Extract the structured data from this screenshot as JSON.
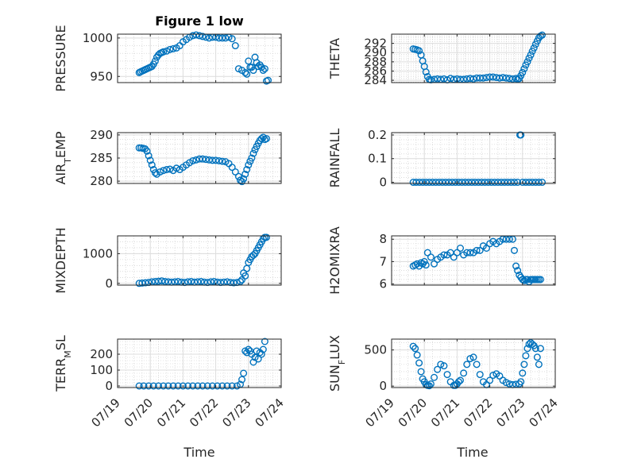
{
  "figure": {
    "title": "Figure 1 low",
    "xlabel": "Time",
    "x_ticks": [
      "07/19",
      "07/20",
      "07/21",
      "07/22",
      "07/23",
      "07/24"
    ],
    "marker_color": "#0072BD"
  },
  "chart_data": [
    {
      "type": "scatter",
      "ylabel": "PRESSURE",
      "ylabel_main": "PRESSURE",
      "ylabel_sub": "",
      "ylabel_rest": "",
      "ylim": [
        942,
        1005
      ],
      "yticks": [
        950,
        1000
      ],
      "x": [
        0.66,
        0.7,
        0.75,
        0.8,
        0.85,
        0.9,
        0.95,
        1.0,
        1.05,
        1.1,
        1.15,
        1.2,
        1.25,
        1.3,
        1.35,
        1.4,
        1.5,
        1.6,
        1.7,
        1.8,
        1.9,
        2.0,
        2.1,
        2.2,
        2.3,
        2.4,
        2.5,
        2.6,
        2.7,
        2.8,
        2.9,
        3.0,
        3.1,
        3.2,
        3.3,
        3.4,
        3.5,
        3.6,
        3.7,
        3.8,
        3.9,
        3.95,
        4.0,
        4.05,
        4.1,
        4.15,
        4.2,
        4.25,
        4.3,
        4.35,
        4.4,
        4.45,
        4.5,
        4.55,
        4.6
      ],
      "y": [
        955,
        956,
        957,
        958,
        959,
        960,
        961,
        962,
        963,
        966,
        970,
        975,
        978,
        980,
        981,
        982,
        983,
        985,
        986,
        987,
        990,
        995,
        998,
        1001,
        1003,
        1004,
        1003,
        1002,
        1001,
        1000,
        1001,
        1001,
        1000,
        1000,
        1000,
        1001,
        999,
        990,
        960,
        958,
        955,
        953,
        970,
        962,
        962,
        958,
        975,
        968,
        963,
        965,
        962,
        958,
        960,
        944,
        945
      ]
    },
    {
      "type": "scatter",
      "ylabel": "THETA",
      "ylabel_main": "THETA",
      "ylabel_sub": "",
      "ylabel_rest": "",
      "ylim": [
        283.5,
        294
      ],
      "yticks": [
        284,
        286,
        288,
        290,
        292
      ],
      "x": [
        0.66,
        0.72,
        0.78,
        0.84,
        0.9,
        0.95,
        1.0,
        1.05,
        1.1,
        1.15,
        1.2,
        1.3,
        1.4,
        1.5,
        1.6,
        1.7,
        1.8,
        1.9,
        2.0,
        2.1,
        2.2,
        2.3,
        2.4,
        2.5,
        2.6,
        2.7,
        2.8,
        2.9,
        3.0,
        3.1,
        3.2,
        3.3,
        3.4,
        3.5,
        3.6,
        3.7,
        3.8,
        3.85,
        3.9,
        3.95,
        4.0,
        4.05,
        4.1,
        4.15,
        4.2,
        4.25,
        4.3,
        4.35,
        4.4,
        4.45,
        4.5,
        4.55,
        4.6
      ],
      "y": [
        290.8,
        290.7,
        290.6,
        290.4,
        289.5,
        288.2,
        287.0,
        285.8,
        284.8,
        284.2,
        284.1,
        284.2,
        284.3,
        284.2,
        284.3,
        284.1,
        284.4,
        284.2,
        284.3,
        284.2,
        284.2,
        284.3,
        284.4,
        284.3,
        284.5,
        284.5,
        284.5,
        284.6,
        284.7,
        284.7,
        284.6,
        284.5,
        284.6,
        284.5,
        284.4,
        284.3,
        284.4,
        284.2,
        284.4,
        285.0,
        285.7,
        286.5,
        287.3,
        288.0,
        288.8,
        289.5,
        290.3,
        291.0,
        291.8,
        292.5,
        293.2,
        293.6,
        293.8
      ]
    },
    {
      "type": "scatter",
      "ylabel": "AIRTEMP",
      "ylabel_main": "AIR",
      "ylabel_sub": "T",
      "ylabel_rest": "EMP",
      "ylim": [
        279.5,
        290.5
      ],
      "yticks": [
        280,
        285,
        290
      ],
      "x": [
        0.66,
        0.72,
        0.78,
        0.84,
        0.9,
        0.95,
        1.0,
        1.05,
        1.1,
        1.15,
        1.2,
        1.3,
        1.4,
        1.5,
        1.6,
        1.7,
        1.8,
        1.9,
        2.0,
        2.1,
        2.2,
        2.3,
        2.4,
        2.5,
        2.6,
        2.7,
        2.8,
        2.9,
        3.0,
        3.1,
        3.2,
        3.3,
        3.4,
        3.5,
        3.6,
        3.7,
        3.75,
        3.8,
        3.85,
        3.9,
        3.95,
        4.0,
        4.05,
        4.1,
        4.15,
        4.2,
        4.25,
        4.3,
        4.35,
        4.4,
        4.45,
        4.5,
        4.55
      ],
      "y": [
        287.2,
        287.2,
        287.1,
        287.0,
        286.5,
        285.5,
        284.5,
        283.5,
        282.5,
        281.8,
        281.5,
        282.0,
        282.3,
        282.5,
        282.6,
        282.3,
        282.8,
        282.5,
        283.0,
        283.5,
        284.0,
        284.4,
        284.6,
        284.8,
        284.8,
        284.7,
        284.6,
        284.5,
        284.5,
        284.4,
        284.3,
        284.2,
        283.8,
        283.0,
        282.0,
        281.0,
        280.2,
        279.9,
        280.5,
        281.5,
        282.5,
        283.5,
        284.3,
        285.0,
        286.0,
        286.8,
        287.5,
        288.2,
        288.8,
        289.2,
        289.5,
        289.0,
        289.2
      ]
    },
    {
      "type": "scatter",
      "ylabel": "RAINFALL",
      "ylabel_main": "RAINFALL",
      "ylabel_sub": "",
      "ylabel_rest": "",
      "ylim": [
        -0.005,
        0.21
      ],
      "yticks": [
        0,
        0.1,
        0.2
      ],
      "ytick_labels": [
        "0",
        "0.1",
        "0.2"
      ],
      "x": [
        0.66,
        0.75,
        0.85,
        0.95,
        1.05,
        1.15,
        1.25,
        1.35,
        1.45,
        1.55,
        1.65,
        1.75,
        1.85,
        1.95,
        2.05,
        2.15,
        2.25,
        2.35,
        2.45,
        2.55,
        2.65,
        2.75,
        2.85,
        2.95,
        3.05,
        3.15,
        3.25,
        3.35,
        3.45,
        3.55,
        3.65,
        3.75,
        3.85,
        3.92,
        3.95,
        4.0,
        4.1,
        4.2,
        4.3,
        4.4,
        4.5,
        4.6
      ],
      "y": [
        0,
        0,
        0,
        0,
        0,
        0,
        0,
        0,
        0,
        0,
        0,
        0,
        0,
        0,
        0,
        0,
        0,
        0,
        0,
        0,
        0,
        0,
        0,
        0,
        0,
        0,
        0,
        0,
        0,
        0,
        0,
        0,
        0,
        0.2,
        0.2,
        0,
        0,
        0,
        0,
        0,
        0,
        0
      ]
    },
    {
      "type": "scatter",
      "ylabel": "MIXDEPTH",
      "ylabel_main": "MIXDEPTH",
      "ylabel_sub": "",
      "ylabel_rest": "",
      "ylim": [
        -60,
        1600
      ],
      "yticks": [
        0,
        1000
      ],
      "x": [
        0.66,
        0.75,
        0.85,
        0.95,
        1.05,
        1.15,
        1.25,
        1.35,
        1.45,
        1.55,
        1.65,
        1.75,
        1.85,
        1.95,
        2.05,
        2.15,
        2.25,
        2.35,
        2.45,
        2.55,
        2.65,
        2.75,
        2.85,
        2.95,
        3.05,
        3.15,
        3.25,
        3.35,
        3.45,
        3.55,
        3.65,
        3.75,
        3.8,
        3.85,
        3.9,
        3.95,
        4.0,
        4.05,
        4.1,
        4.15,
        4.2,
        4.25,
        4.3,
        4.35,
        4.4,
        4.45,
        4.5,
        4.55
      ],
      "y": [
        0,
        10,
        20,
        30,
        50,
        60,
        70,
        80,
        60,
        50,
        40,
        50,
        60,
        40,
        30,
        50,
        60,
        40,
        50,
        60,
        40,
        30,
        50,
        60,
        40,
        30,
        40,
        50,
        30,
        20,
        30,
        60,
        120,
        350,
        250,
        500,
        700,
        800,
        900,
        950,
        1000,
        1100,
        1200,
        1300,
        1400,
        1500,
        1550,
        1550
      ]
    },
    {
      "type": "scatter",
      "ylabel": "H2OMIXRA",
      "ylabel_main": "H2OMIXRA",
      "ylabel_sub": "",
      "ylabel_rest": "",
      "ylim": [
        5.95,
        8.15
      ],
      "yticks": [
        6,
        7,
        8
      ],
      "x": [
        0.66,
        0.72,
        0.78,
        0.84,
        0.9,
        0.95,
        1.0,
        1.05,
        1.1,
        1.2,
        1.3,
        1.4,
        1.5,
        1.6,
        1.7,
        1.8,
        1.9,
        2.0,
        2.1,
        2.2,
        2.3,
        2.4,
        2.5,
        2.6,
        2.7,
        2.8,
        2.9,
        3.0,
        3.1,
        3.2,
        3.3,
        3.4,
        3.5,
        3.6,
        3.7,
        3.75,
        3.8,
        3.85,
        3.9,
        3.95,
        4.0,
        4.05,
        4.1,
        4.15,
        4.2,
        4.25,
        4.3,
        4.35,
        4.4,
        4.45,
        4.5,
        4.55
      ],
      "y": [
        6.8,
        6.85,
        6.9,
        6.8,
        6.95,
        6.9,
        7.0,
        6.85,
        7.4,
        7.2,
        6.9,
        7.1,
        7.2,
        7.3,
        7.3,
        7.4,
        7.2,
        7.4,
        7.6,
        7.3,
        7.4,
        7.4,
        7.4,
        7.5,
        7.5,
        7.7,
        7.6,
        7.8,
        7.9,
        7.8,
        7.9,
        8.0,
        8.0,
        8.0,
        8.0,
        7.5,
        6.8,
        6.6,
        6.4,
        6.3,
        6.2,
        6.15,
        6.2,
        6.2,
        6.1,
        6.2,
        6.2,
        6.2,
        6.2,
        6.2,
        6.2,
        6.2
      ]
    },
    {
      "type": "scatter",
      "ylabel": "TERRMSL",
      "ylabel_main": "TERR",
      "ylabel_sub": "M",
      "ylabel_rest": "SL",
      "ylim": [
        -10,
        295
      ],
      "yticks": [
        0,
        100,
        200
      ],
      "x": [
        0.66,
        0.8,
        0.95,
        1.1,
        1.25,
        1.4,
        1.55,
        1.7,
        1.85,
        2.0,
        2.15,
        2.3,
        2.45,
        2.6,
        2.75,
        2.9,
        3.05,
        3.2,
        3.35,
        3.5,
        3.65,
        3.75,
        3.8,
        3.85,
        3.9,
        3.95,
        4.0,
        4.05,
        4.1,
        4.15,
        4.2,
        4.25,
        4.3,
        4.35,
        4.4,
        4.45,
        4.5
      ],
      "y": [
        0,
        0,
        0,
        0,
        0,
        0,
        0,
        0,
        0,
        0,
        0,
        0,
        0,
        0,
        0,
        0,
        0,
        0,
        0,
        0,
        0,
        10,
        40,
        80,
        220,
        210,
        230,
        220,
        200,
        150,
        180,
        220,
        170,
        210,
        200,
        230,
        280
      ]
    },
    {
      "type": "scatter",
      "ylabel": "SUNFLUX",
      "ylabel_main": "SUN",
      "ylabel_sub": "F",
      "ylabel_rest": "LUX",
      "ylim": [
        -20,
        650
      ],
      "yticks": [
        0,
        500
      ],
      "x": [
        0.66,
        0.72,
        0.78,
        0.84,
        0.9,
        0.95,
        1.0,
        1.05,
        1.1,
        1.15,
        1.2,
        1.3,
        1.4,
        1.5,
        1.6,
        1.7,
        1.8,
        1.9,
        1.95,
        2.0,
        2.05,
        2.1,
        2.2,
        2.3,
        2.4,
        2.5,
        2.6,
        2.7,
        2.8,
        2.9,
        3.0,
        3.1,
        3.2,
        3.3,
        3.4,
        3.5,
        3.6,
        3.7,
        3.8,
        3.9,
        3.95,
        4.0,
        4.05,
        4.1,
        4.15,
        4.2,
        4.25,
        4.3,
        4.35,
        4.4,
        4.45,
        4.5,
        4.55
      ],
      "y": [
        550,
        520,
        430,
        320,
        200,
        100,
        60,
        20,
        10,
        5,
        30,
        120,
        230,
        300,
        280,
        160,
        60,
        10,
        10,
        30,
        60,
        80,
        180,
        300,
        380,
        400,
        300,
        160,
        60,
        20,
        80,
        150,
        170,
        140,
        80,
        50,
        30,
        20,
        25,
        30,
        60,
        180,
        300,
        420,
        520,
        580,
        600,
        580,
        560,
        520,
        400,
        300,
        520
      ]
    }
  ]
}
